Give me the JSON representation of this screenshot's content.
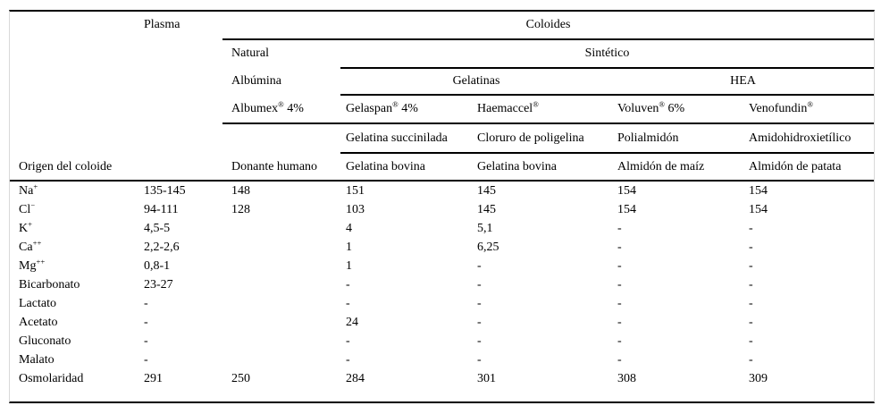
{
  "table": {
    "header": {
      "plasma": "Plasma",
      "coloides": "Coloides",
      "natural": "Natural",
      "sintetico": "Sintético",
      "albumina": "Albúmina",
      "gelatinas": "Gelatinas",
      "hea": "HEA",
      "products": [
        {
          "pre": "Albumex",
          "sup": "®",
          "post": " 4%"
        },
        {
          "pre": "Gelaspan",
          "sup": "®",
          "post": " 4%"
        },
        {
          "pre": "Haemaccel",
          "sup": "®",
          "post": ""
        },
        {
          "pre": "Voluven",
          "sup": "®",
          "post": " 6%"
        },
        {
          "pre": "Venofundin",
          "sup": "®",
          "post": ""
        }
      ],
      "composition": [
        "Gelatina succinilada",
        "Cloruro de poligelina",
        "Polialmidón",
        "Amidohidroxietílico"
      ],
      "origen_label": "Origen del coloide",
      "origins": [
        "Donante humano",
        "Gelatina bovina",
        "Gelatina bovina",
        "Almidón de maíz",
        "Almidón de patata"
      ]
    },
    "rows": [
      {
        "label": {
          "base": "Na",
          "sup": "+"
        },
        "values": [
          "135-145",
          "148",
          "151",
          "145",
          "154",
          "154"
        ]
      },
      {
        "label": {
          "base": "Cl",
          "sup": "−"
        },
        "values": [
          "94-111",
          "128",
          "103",
          "145",
          "154",
          "154"
        ]
      },
      {
        "label": {
          "base": "K",
          "sup": "+"
        },
        "values": [
          "4,5-5",
          "",
          "4",
          "5,1",
          "-",
          "-"
        ]
      },
      {
        "label": {
          "base": "Ca",
          "sup": "++"
        },
        "values": [
          "2,2-2,6",
          "",
          "1",
          "6,25",
          "-",
          "-"
        ]
      },
      {
        "label": {
          "base": "Mg",
          "sup": "++"
        },
        "values": [
          "0,8-1",
          "",
          "1",
          "-",
          "-",
          "-"
        ]
      },
      {
        "label": {
          "base": "Bicarbonato",
          "sup": ""
        },
        "values": [
          "23-27",
          "",
          "-",
          "-",
          "-",
          "-"
        ]
      },
      {
        "label": {
          "base": "Lactato",
          "sup": ""
        },
        "values": [
          "-",
          "",
          "-",
          "-",
          "-",
          "-"
        ]
      },
      {
        "label": {
          "base": "Acetato",
          "sup": ""
        },
        "values": [
          "-",
          "",
          "24",
          "-",
          "-",
          "-"
        ]
      },
      {
        "label": {
          "base": "Gluconato",
          "sup": ""
        },
        "values": [
          "-",
          "",
          "-",
          "-",
          "-",
          "-"
        ]
      },
      {
        "label": {
          "base": "Malato",
          "sup": ""
        },
        "values": [
          "-",
          "",
          "-",
          "-",
          "-",
          "-"
        ]
      },
      {
        "label": {
          "base": "Osmolaridad",
          "sup": ""
        },
        "values": [
          "291",
          "250",
          "284",
          "301",
          "308",
          "309"
        ]
      }
    ]
  },
  "colors": {
    "rule": "#000000",
    "frame_side": "#d9d9d9",
    "background": "#ffffff",
    "text": "#000000"
  }
}
